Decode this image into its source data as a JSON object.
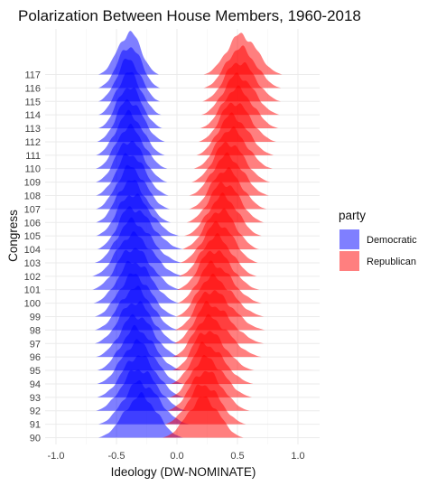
{
  "chart_data": {
    "type": "ridgeline",
    "title": "Polarization Between House Members, 1960-2018",
    "xlabel": "Ideology (DW-NOMINATE)",
    "ylabel": "Congress",
    "xlim": [
      -1.0,
      1.0
    ],
    "xticks": [
      -1.0,
      -0.5,
      0.0,
      0.5,
      1.0
    ],
    "xtick_labels": [
      "-1.0",
      "-0.5",
      "0.0",
      "0.5",
      "1.0"
    ],
    "categories": [
      "90",
      "91",
      "92",
      "93",
      "94",
      "95",
      "96",
      "97",
      "98",
      "99",
      "100",
      "101",
      "102",
      "103",
      "104",
      "105",
      "106",
      "107",
      "108",
      "109",
      "110",
      "111",
      "112",
      "113",
      "114",
      "115",
      "116",
      "117"
    ],
    "grid": true,
    "legend": {
      "title": "party",
      "position": "right",
      "entries": [
        {
          "label": "Democratic",
          "color": "#0000ff"
        },
        {
          "label": "Republican",
          "color": "#ff0000"
        }
      ]
    },
    "series": [
      {
        "name": "Democratic",
        "color": "#0000ff",
        "opacity": 0.5,
        "peak_ideology": [
          -0.3,
          -0.31,
          -0.32,
          -0.32,
          -0.33,
          -0.34,
          -0.34,
          -0.35,
          -0.35,
          -0.36,
          -0.36,
          -0.37,
          -0.37,
          -0.38,
          -0.38,
          -0.38,
          -0.39,
          -0.39,
          -0.39,
          -0.4,
          -0.4,
          -0.4,
          -0.4,
          -0.4,
          -0.4,
          -0.4,
          -0.39,
          -0.39
        ],
        "range_ideology": [
          [
            -0.65,
            0.05
          ],
          [
            -0.65,
            0.1
          ],
          [
            -0.67,
            0.08
          ],
          [
            -0.66,
            0.06
          ],
          [
            -0.66,
            0.05
          ],
          [
            -0.66,
            0.04
          ],
          [
            -0.67,
            0.03
          ],
          [
            -0.68,
            0.02
          ],
          [
            -0.68,
            0.01
          ],
          [
            -0.68,
            0.0
          ],
          [
            -0.69,
            0.02
          ],
          [
            -0.7,
            0.03
          ],
          [
            -0.7,
            0.05
          ],
          [
            -0.68,
            0.04
          ],
          [
            -0.66,
            0.05
          ],
          [
            -0.67,
            0.02
          ],
          [
            -0.67,
            -0.05
          ],
          [
            -0.67,
            -0.06
          ],
          [
            -0.67,
            -0.07
          ],
          [
            -0.67,
            -0.08
          ],
          [
            -0.67,
            -0.08
          ],
          [
            -0.67,
            -0.1
          ],
          [
            -0.66,
            -0.1
          ],
          [
            -0.65,
            -0.12
          ],
          [
            -0.65,
            -0.13
          ],
          [
            -0.65,
            -0.14
          ],
          [
            -0.65,
            -0.14
          ],
          [
            -0.65,
            -0.15
          ]
        ]
      },
      {
        "name": "Republican",
        "color": "#ff0000",
        "opacity": 0.5,
        "peak_ideology": [
          0.22,
          0.22,
          0.23,
          0.23,
          0.23,
          0.24,
          0.25,
          0.26,
          0.27,
          0.28,
          0.29,
          0.3,
          0.32,
          0.34,
          0.36,
          0.38,
          0.39,
          0.4,
          0.41,
          0.42,
          0.44,
          0.45,
          0.47,
          0.49,
          0.5,
          0.51,
          0.52,
          0.53
        ],
        "range_ideology": [
          [
            -0.12,
            0.55
          ],
          [
            -0.1,
            0.57
          ],
          [
            -0.08,
            0.6
          ],
          [
            -0.06,
            0.62
          ],
          [
            -0.05,
            0.63
          ],
          [
            -0.04,
            0.64
          ],
          [
            -0.04,
            0.7
          ],
          [
            -0.03,
            0.72
          ],
          [
            -0.02,
            0.73
          ],
          [
            -0.01,
            0.72
          ],
          [
            0.0,
            0.7
          ],
          [
            0.0,
            0.68
          ],
          [
            0.01,
            0.66
          ],
          [
            0.02,
            0.67
          ],
          [
            0.04,
            0.68
          ],
          [
            0.06,
            0.7
          ],
          [
            0.08,
            0.72
          ],
          [
            0.1,
            0.74
          ],
          [
            0.1,
            0.76
          ],
          [
            0.12,
            0.77
          ],
          [
            0.14,
            0.79
          ],
          [
            0.16,
            0.8
          ],
          [
            0.18,
            0.82
          ],
          [
            0.19,
            0.84
          ],
          [
            0.2,
            0.85
          ],
          [
            0.21,
            0.86
          ],
          [
            0.22,
            0.86
          ],
          [
            0.22,
            0.87
          ]
        ]
      }
    ]
  }
}
